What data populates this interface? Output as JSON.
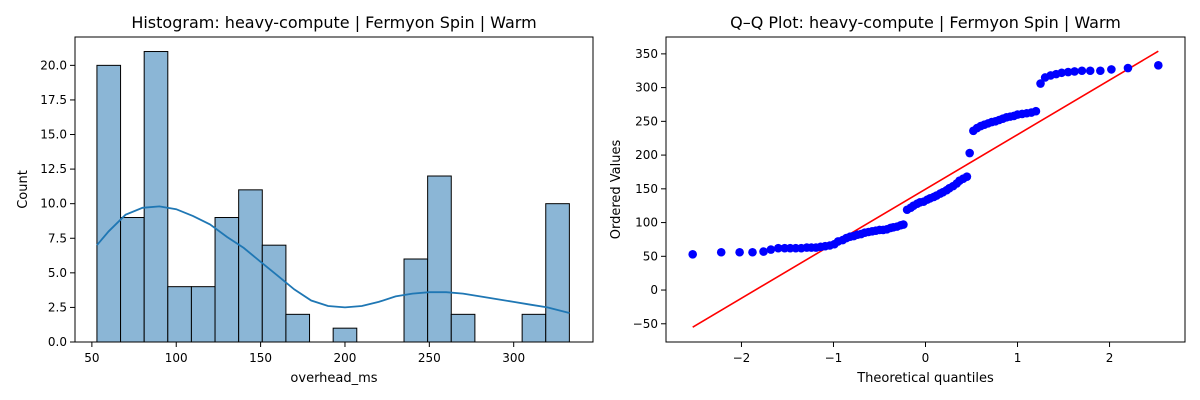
{
  "chart_data": [
    {
      "type": "bar",
      "title": "Histogram: heavy-compute | Fermyon Spin | Warm",
      "xlabel": "overhead_ms",
      "ylabel": "Count",
      "xlim": [
        40,
        347
      ],
      "ylim": [
        0,
        22.05
      ],
      "xticks": [
        50,
        100,
        150,
        200,
        250,
        300
      ],
      "yticks": [
        0.0,
        2.5,
        5.0,
        7.5,
        10.0,
        12.5,
        15.0,
        17.5,
        20.0
      ],
      "bins": {
        "start": 53,
        "width": 14,
        "counts": [
          20,
          9,
          21,
          4,
          4,
          9,
          11,
          7,
          2,
          0,
          1,
          0,
          0,
          6,
          12,
          2,
          0,
          0,
          2,
          10
        ]
      },
      "kde": {
        "x": [
          53,
          60,
          70,
          80,
          90,
          100,
          110,
          120,
          130,
          140,
          150,
          160,
          170,
          180,
          190,
          200,
          210,
          220,
          230,
          240,
          250,
          260,
          270,
          280,
          290,
          300,
          310,
          320,
          333
        ],
        "y": [
          7.0,
          8.0,
          9.2,
          9.7,
          9.8,
          9.6,
          9.1,
          8.5,
          7.6,
          6.8,
          5.8,
          4.8,
          3.8,
          3.0,
          2.6,
          2.5,
          2.6,
          2.9,
          3.3,
          3.5,
          3.6,
          3.6,
          3.5,
          3.3,
          3.1,
          2.9,
          2.7,
          2.5,
          2.1
        ]
      },
      "colors": {
        "bar_fill": "#8bb6d6",
        "bar_edge": "#000000",
        "kde_line": "#1f77b4"
      },
      "grid": false
    },
    {
      "type": "scatter",
      "title": "Q–Q Plot: heavy-compute | Fermyon Spin | Warm",
      "xlabel": "Theoretical quantiles",
      "ylabel": "Ordered Values",
      "xlim": [
        -2.82,
        2.82
      ],
      "ylim": [
        -77,
        375
      ],
      "xticks": [
        -2,
        -1,
        0,
        1,
        2
      ],
      "yticks": [
        -50,
        0,
        50,
        100,
        150,
        200,
        250,
        300,
        350
      ],
      "points": {
        "x": [
          -2.53,
          -2.22,
          -2.02,
          -1.88,
          -1.76,
          -1.68,
          -1.6,
          -1.53,
          -1.47,
          -1.41,
          -1.35,
          -1.29,
          -1.24,
          -1.19,
          -1.14,
          -1.09,
          -1.04,
          -0.99,
          -0.95,
          -0.9,
          -0.86,
          -0.82,
          -0.78,
          -0.74,
          -0.7,
          -0.66,
          -0.62,
          -0.58,
          -0.54,
          -0.5,
          -0.46,
          -0.42,
          -0.38,
          -0.35,
          -0.31,
          -0.27,
          -0.24,
          -0.2,
          -0.16,
          -0.13,
          -0.09,
          -0.06,
          -0.02,
          0.02,
          0.05,
          0.09,
          0.12,
          0.16,
          0.19,
          0.23,
          0.26,
          0.3,
          0.34,
          0.37,
          0.41,
          0.45,
          0.48,
          0.52,
          0.56,
          0.6,
          0.64,
          0.68,
          0.72,
          0.76,
          0.8,
          0.84,
          0.88,
          0.92,
          0.96,
          1.0,
          1.05,
          1.1,
          1.15,
          1.2,
          1.25,
          1.3,
          1.36,
          1.42,
          1.48,
          1.55,
          1.62,
          1.7,
          1.79,
          1.9,
          2.02,
          2.2,
          2.53
        ],
        "y": [
          53,
          56,
          56,
          56,
          57,
          60,
          62,
          62,
          62,
          62,
          62,
          63,
          63,
          63,
          64,
          65,
          66,
          68,
          72,
          74,
          77,
          79,
          80,
          82,
          83,
          85,
          86,
          87,
          88,
          89,
          89,
          90,
          92,
          93,
          94,
          96,
          97,
          119,
          122,
          125,
          128,
          130,
          131,
          134,
          136,
          138,
          140,
          143,
          145,
          148,
          151,
          154,
          158,
          162,
          165,
          168,
          203,
          236,
          240,
          243,
          245,
          247,
          249,
          250,
          252,
          254,
          256,
          257,
          258,
          260,
          261,
          262,
          263,
          265,
          306,
          315,
          318,
          320,
          322,
          323,
          324,
          325,
          325,
          325,
          327,
          329,
          333
        ]
      },
      "fit_line": {
        "x": [
          -2.53,
          2.53
        ],
        "y": [
          -55,
          354
        ]
      },
      "colors": {
        "point": "#0000ff",
        "line": "#ff0000"
      },
      "grid": false
    }
  ]
}
